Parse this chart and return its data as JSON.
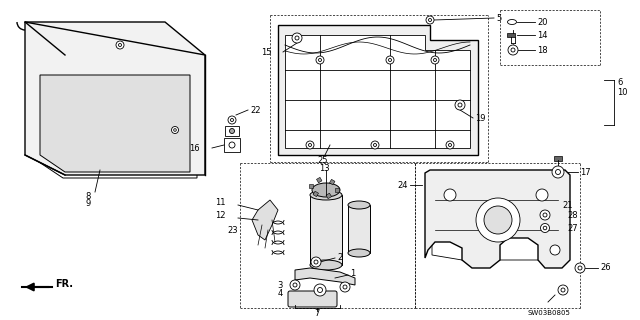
{
  "bg_color": "#ffffff",
  "fig_width": 6.4,
  "fig_height": 3.2,
  "dpi": 100,
  "watermark": "SW03B0805",
  "fr_label": "FR.",
  "line_color": "#000000",
  "light_gray": "#d8d8d8",
  "mid_gray": "#b0b0b0"
}
